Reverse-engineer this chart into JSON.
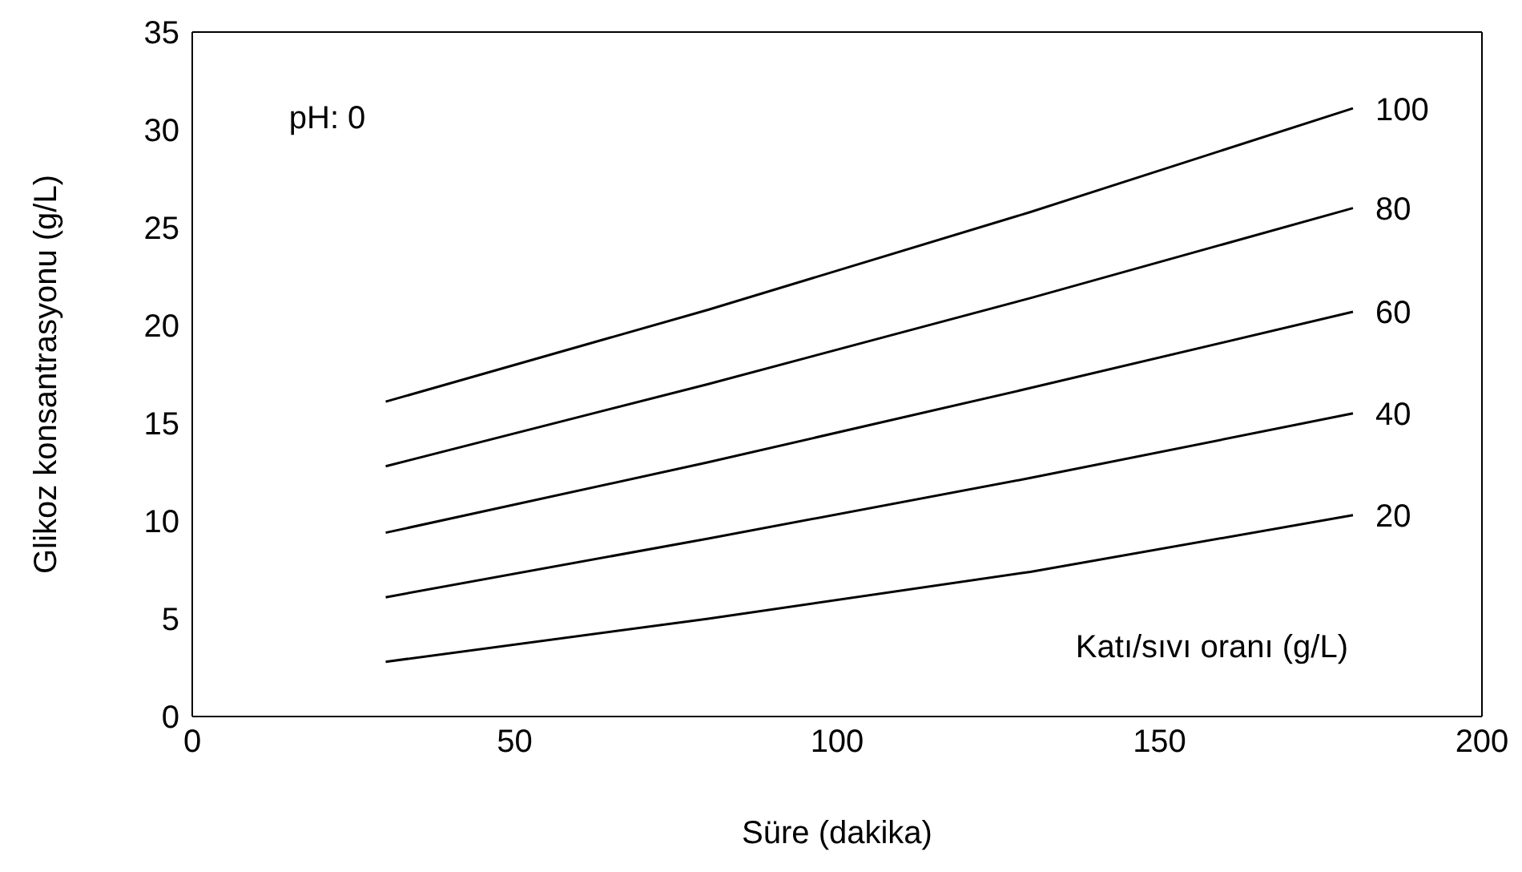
{
  "chart_data": {
    "type": "line",
    "xlabel": "Süre (dakika)",
    "ylabel": "Glikoz konsantrasyonu (g/L)",
    "legend_title": "Katı/sıvı oranı (g/L)",
    "annotations": [
      "pH: 0"
    ],
    "x": [
      30,
      80,
      130,
      180
    ],
    "xlim": [
      0,
      200
    ],
    "xticks": [
      0,
      50,
      100,
      150,
      200
    ],
    "ylim": [
      0,
      35
    ],
    "yticks": [
      0,
      5,
      10,
      15,
      20,
      25,
      30,
      35
    ],
    "grid": false,
    "marker": "none",
    "line_style": "solid",
    "series": [
      {
        "name": "100",
        "color": "#000000",
        "values": [
          16.1,
          20.8,
          25.8,
          31.1
        ]
      },
      {
        "name": "80",
        "color": "#000000",
        "values": [
          12.8,
          17.0,
          21.4,
          26.0
        ]
      },
      {
        "name": "60",
        "color": "#000000",
        "values": [
          9.4,
          13.0,
          16.8,
          20.7
        ]
      },
      {
        "name": "40",
        "color": "#000000",
        "values": [
          6.1,
          9.1,
          12.2,
          15.5
        ]
      },
      {
        "name": "20",
        "color": "#000000",
        "values": [
          2.8,
          5.0,
          7.4,
          10.3
        ]
      }
    ]
  }
}
